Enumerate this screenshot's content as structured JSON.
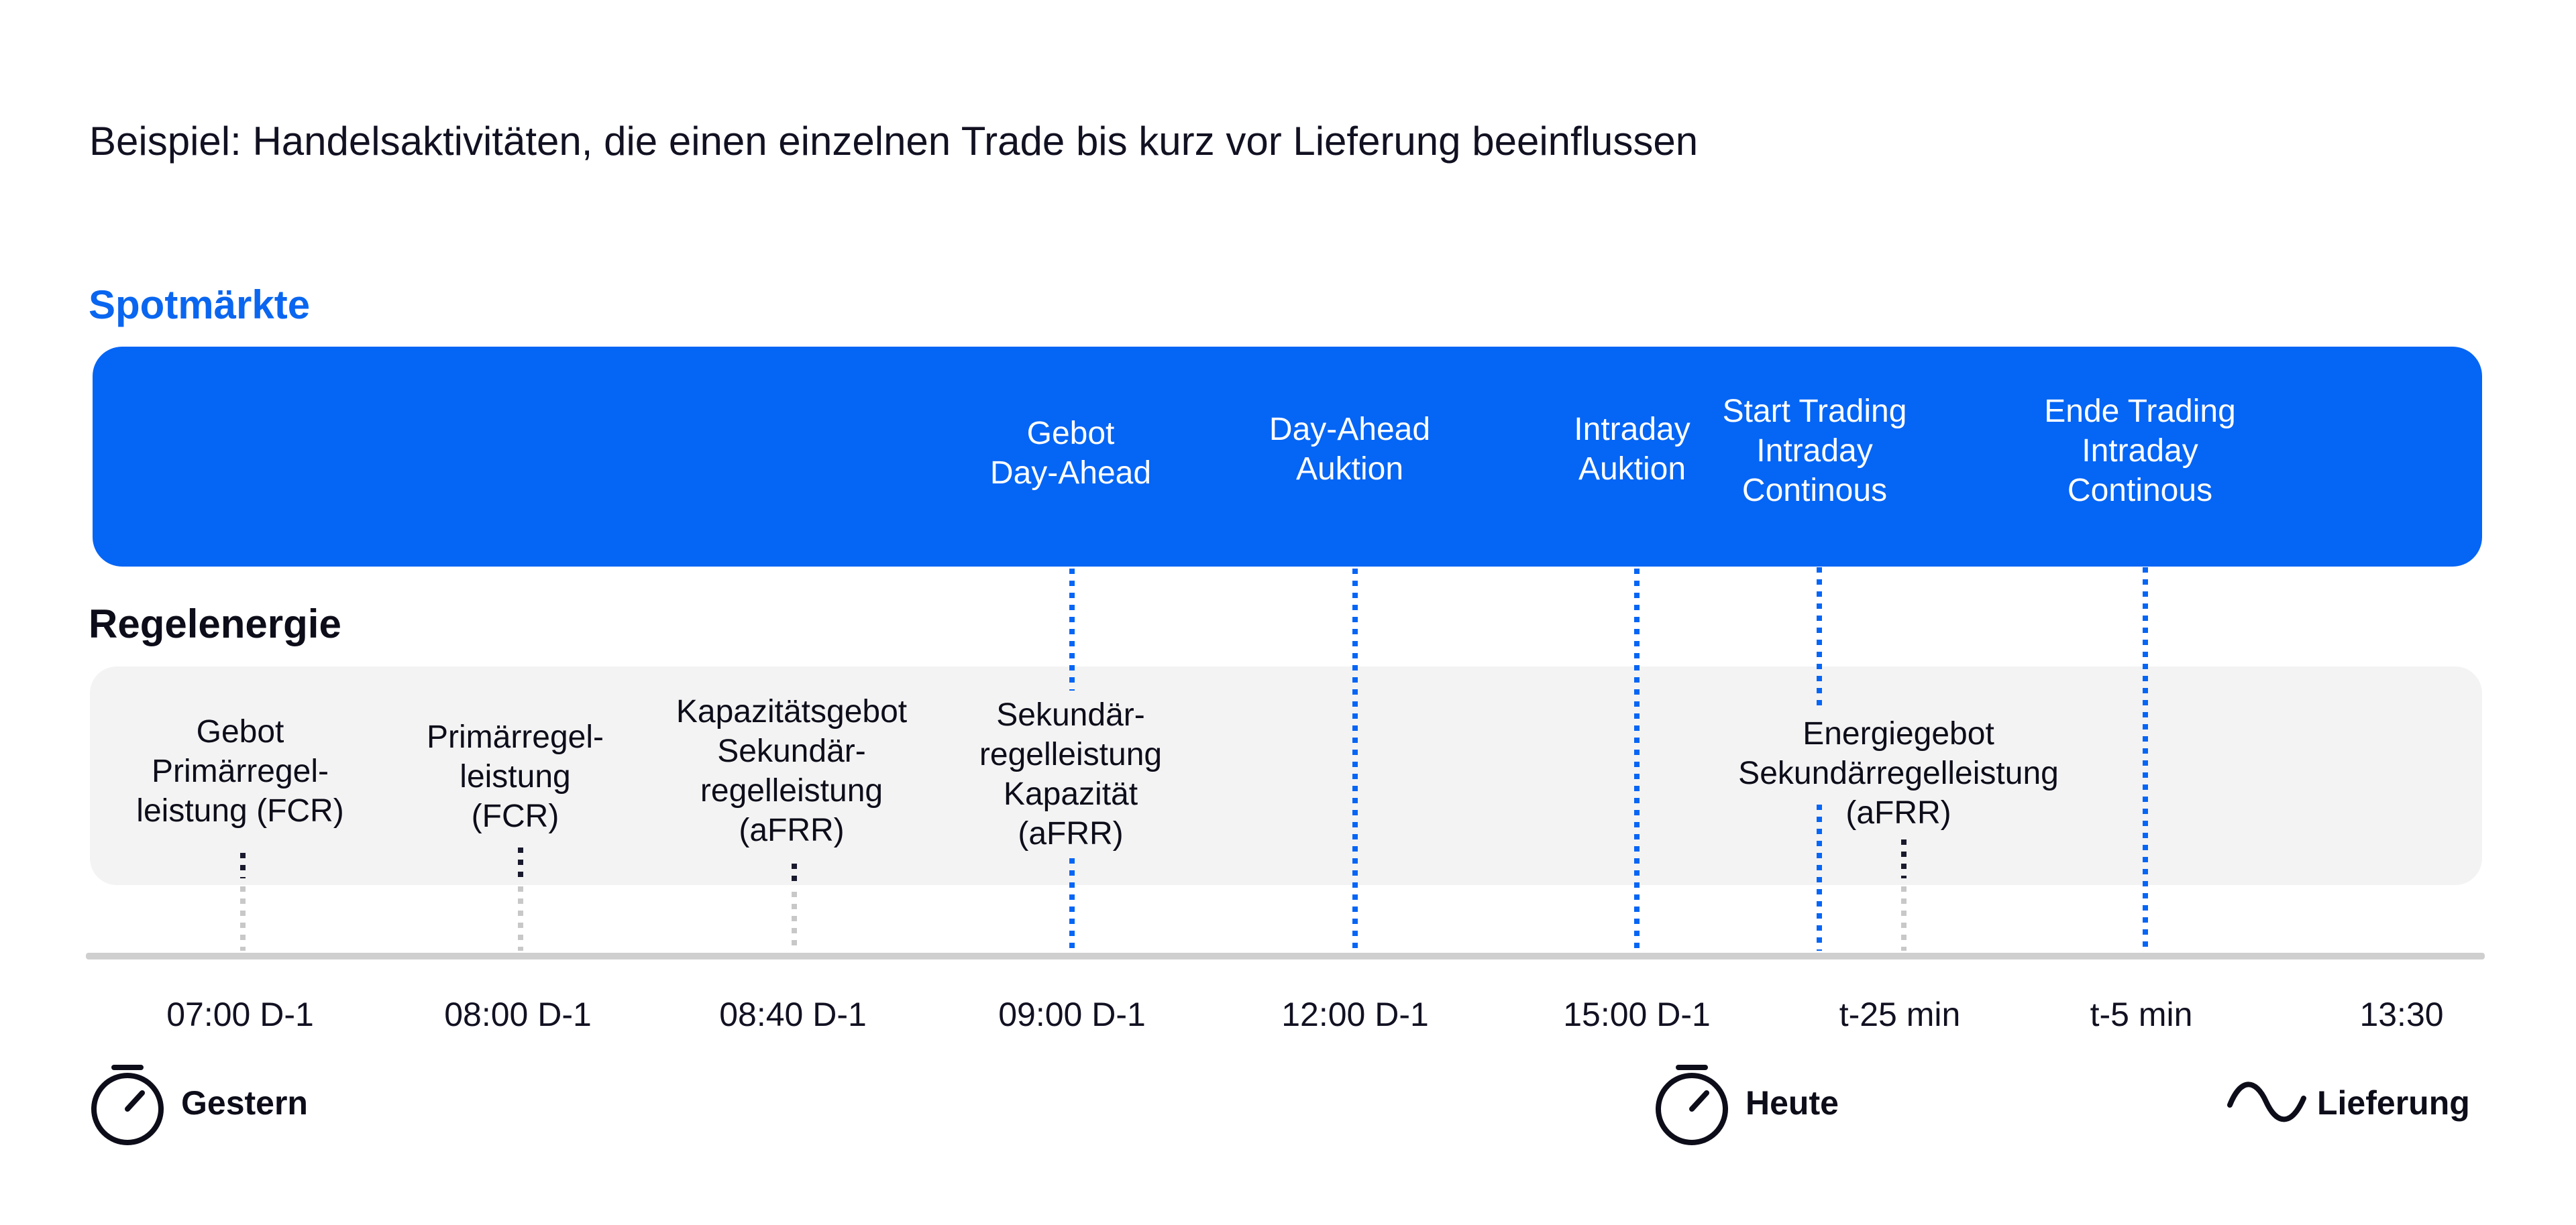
{
  "title": "Beispiel: Handelsaktivitäten, die einen einzelnen Trade bis kurz vor Lieferung beeinflussen",
  "spot_section": {
    "label": "Spotmärkte",
    "events": [
      {
        "id": "gebot-day-ahead",
        "lines": [
          "Gebot",
          "Day-Ahead"
        ]
      },
      {
        "id": "day-ahead-auktion",
        "lines": [
          "Day-Ahead",
          "Auktion"
        ]
      },
      {
        "id": "intraday-auktion",
        "lines": [
          "Intraday",
          "Auktion"
        ]
      },
      {
        "id": "start-trading",
        "lines": [
          "Start Trading",
          "Intraday",
          "Continous"
        ]
      },
      {
        "id": "ende-trading",
        "lines": [
          "Ende Trading",
          "Intraday",
          "Continous"
        ]
      }
    ]
  },
  "regel_section": {
    "label": "Regelenergie",
    "events": [
      {
        "id": "gebot-fcr",
        "lines": [
          "Gebot",
          "Primärregel-",
          "leistung (FCR)"
        ]
      },
      {
        "id": "primaerregel-fcr",
        "lines": [
          "Primärregel-",
          "leistung",
          "(FCR)"
        ]
      },
      {
        "id": "kapazitaetsgebot-afrr",
        "lines": [
          "Kapazitätsgebot",
          "Sekundär-",
          "regelleistung",
          "(aFRR)"
        ]
      },
      {
        "id": "sekundaer-kapazitaet",
        "lines": [
          "Sekundär-",
          "regelleistung",
          "Kapazität",
          "(aFRR)"
        ]
      },
      {
        "id": "energiegebot-afrr",
        "lines": [
          "Energiegebot",
          "Sekundärregelleistung",
          "(aFRR)"
        ]
      }
    ]
  },
  "timeline": {
    "ticks": [
      "07:00 D-1",
      "08:00 D-1",
      "08:40 D-1",
      "09:00 D-1",
      "12:00 D-1",
      "15:00 D-1",
      "t-25 min",
      "t-5 min",
      "13:30"
    ]
  },
  "footer": {
    "yesterday": {
      "label": "Gestern",
      "icon": "stopwatch-icon"
    },
    "today": {
      "label": "Heute",
      "icon": "stopwatch-icon"
    },
    "delivery": {
      "label": "Lieferung",
      "icon": "sine-wave-icon"
    }
  },
  "colors": {
    "spot_blue": "#0565f5",
    "heading_blue": "#0a66f0",
    "regel_gray": "#f3f3f3",
    "axis_gray": "#cfcfcf",
    "dark_marker": "#1a1a2e",
    "light_marker": "#c8c8c8"
  }
}
